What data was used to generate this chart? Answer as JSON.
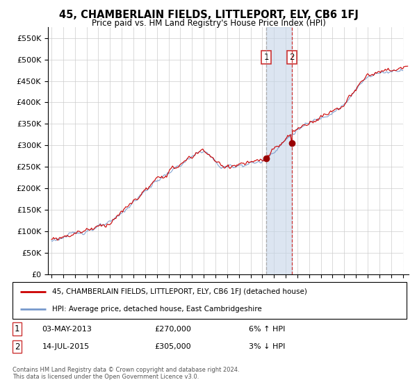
{
  "title": "45, CHAMBERLAIN FIELDS, LITTLEPORT, ELY, CB6 1FJ",
  "subtitle": "Price paid vs. HM Land Registry's House Price Index (HPI)",
  "ylabel_ticks": [
    "£0",
    "£50K",
    "£100K",
    "£150K",
    "£200K",
    "£250K",
    "£300K",
    "£350K",
    "£400K",
    "£450K",
    "£500K",
    "£550K"
  ],
  "ytick_values": [
    0,
    50000,
    100000,
    150000,
    200000,
    250000,
    300000,
    350000,
    400000,
    450000,
    500000,
    550000
  ],
  "ylim": [
    0,
    575000
  ],
  "xlim_start": 1994.7,
  "xlim_end": 2025.5,
  "transaction1_date": 2013.34,
  "transaction1_price": 270000,
  "transaction1_label": "1",
  "transaction2_date": 2015.54,
  "transaction2_price": 305000,
  "transaction2_label": "2",
  "red_line_color": "#cc0000",
  "blue_line_color": "#7799cc",
  "marker_color": "#990000",
  "vline1_color": "#aaaaaa",
  "vline2_color": "#cc3333",
  "shade_color": "#c5d5e8",
  "legend1_text": "45, CHAMBERLAIN FIELDS, LITTLEPORT, ELY, CB6 1FJ (detached house)",
  "legend2_text": "HPI: Average price, detached house, East Cambridgeshire",
  "note1_label": "1",
  "note1_date": "03-MAY-2013",
  "note1_price": "£270,000",
  "note1_hpi": "6% ↑ HPI",
  "note2_label": "2",
  "note2_date": "14-JUL-2015",
  "note2_price": "£305,000",
  "note2_hpi": "3% ↓ HPI",
  "footer": "Contains HM Land Registry data © Crown copyright and database right 2024.\nThis data is licensed under the Open Government Licence v3.0.",
  "background_color": "#ffffff",
  "grid_color": "#cccccc"
}
